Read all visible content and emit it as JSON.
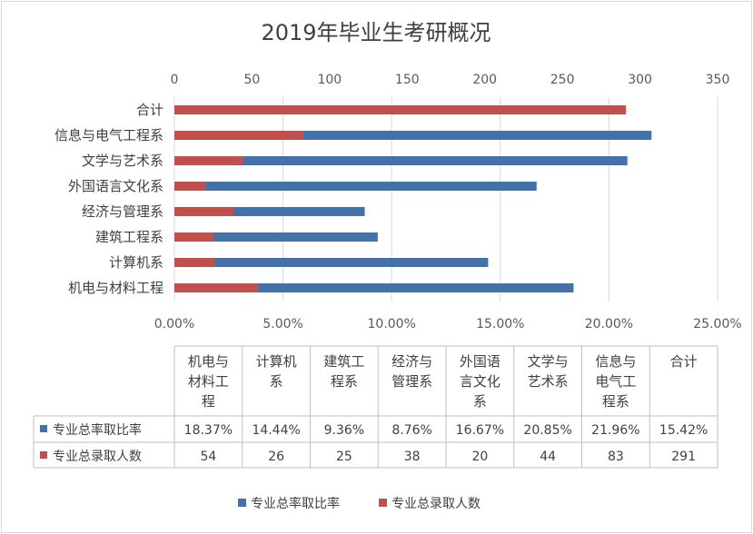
{
  "chart_data": {
    "type": "bar",
    "orientation": "horizontal",
    "title": "2019年毕业生考研概况",
    "categories": [
      "机电与材料工程",
      "计算机系",
      "建筑工程系",
      "经济与管理系",
      "外国语言文化系",
      "文学与艺术系",
      "信息与电气工程系",
      "合计"
    ],
    "table_headers": [
      [
        "机电与",
        "材料工",
        "程"
      ],
      [
        "计算机",
        "系"
      ],
      [
        "建筑工",
        "程系"
      ],
      [
        "经济与",
        "管理系"
      ],
      [
        "外国语",
        "言文化",
        "系"
      ],
      [
        "文学与",
        "艺术系"
      ],
      [
        "信息与",
        "电气工",
        "程系"
      ],
      [
        "合计"
      ]
    ],
    "series": [
      {
        "name": "专业总率取比率",
        "axis": "bottom",
        "unit": "percent",
        "color": "#4472a8",
        "values": [
          18.37,
          14.44,
          9.36,
          8.76,
          16.67,
          20.85,
          21.96,
          15.42
        ],
        "labels": [
          "18.37%",
          "14.44%",
          "9.36%",
          "8.76%",
          "16.67%",
          "20.85%",
          "21.96%",
          "15.42%"
        ]
      },
      {
        "name": "专业总录取人数",
        "axis": "top",
        "unit": "count",
        "color": "#c0504d",
        "values": [
          54,
          26,
          25,
          38,
          20,
          44,
          83,
          291
        ],
        "labels": [
          "54",
          "26",
          "25",
          "38",
          "20",
          "44",
          "83",
          "291"
        ]
      }
    ],
    "top_axis": {
      "range": [
        0,
        350
      ],
      "ticks": [
        "0",
        "50",
        "100",
        "150",
        "200",
        "250",
        "300",
        "350"
      ]
    },
    "bottom_axis": {
      "range": [
        0,
        25
      ],
      "ticks": [
        "0.00%",
        "5.00%",
        "10.00%",
        "15.00%",
        "20.00%",
        "25.00%"
      ]
    },
    "grid": true,
    "legend_position": "bottom",
    "data_table": true
  }
}
